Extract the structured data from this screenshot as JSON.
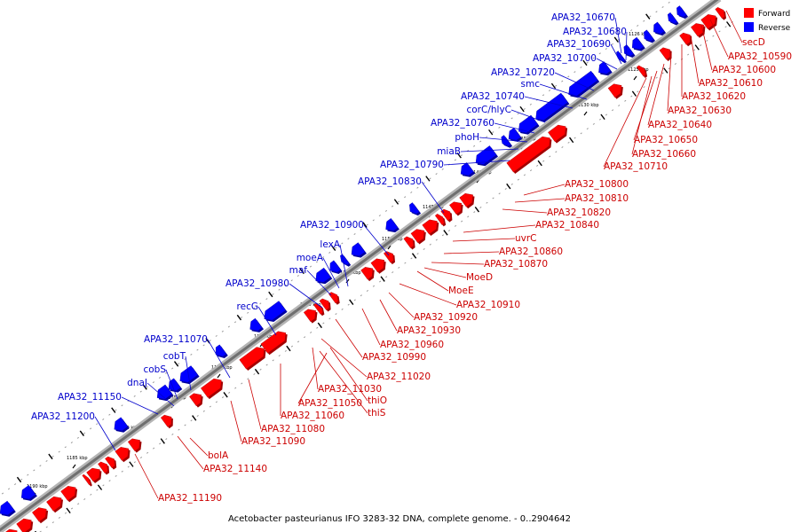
{
  "caption": "Acetobacter pasteurianus IFO 3283-32 DNA, complete genome. - 0..2904642",
  "legend": {
    "items": [
      {
        "label": "Forward",
        "color": "#ff0000"
      },
      {
        "label": "Reverse",
        "color": "#0000ff"
      }
    ]
  },
  "colors": {
    "forward": "#ff0000",
    "forward_label": "#cc0000",
    "reverse": "#0000ff",
    "reverse_label": "#0000cc",
    "backbone": "#888888"
  },
  "scale_labels": [
    "1125 kbp",
    "1126 kbp",
    "1130 kbp",
    "1135 kbp",
    "1140 kbp",
    "1145 kbp",
    "1150 kbp",
    "1155 kbp",
    "1160 kbp",
    "1165 kbp",
    "1170 kbp",
    "1175 kbp",
    "1180 kbp",
    "1185 kbp",
    "1190 kbp"
  ],
  "reverse_labels": [
    "APA32_10670",
    "APA32_10680",
    "APA32_10690",
    "APA32_10700",
    "APA32_10720",
    "smc",
    "APA32_10740",
    "corC/hlyC",
    "APA32_10760",
    "phoH",
    "miaB",
    "APA32_10790",
    "APA32_10830",
    "APA32_10900",
    "lexA",
    "moeA",
    "maf",
    "APA32_10980",
    "recG",
    "APA32_11070",
    "cobT",
    "cobS",
    "dnaJ",
    "APA32_11150",
    "APA32_11200"
  ],
  "forward_labels": [
    "secD",
    "APA32_10590",
    "APA32_10600",
    "APA32_10610",
    "APA32_10620",
    "APA32_10630",
    "APA32_10640",
    "APA32_10650",
    "APA32_10660",
    "APA32_10710",
    "APA32_10800",
    "APA32_10810",
    "APA32_10820",
    "APA32_10840",
    "uvrC",
    "APA32_10860",
    "APA32_10870",
    "MoeD",
    "MoeE",
    "APA32_10910",
    "APA32_10920",
    "APA32_10930",
    "APA32_10960",
    "APA32_10990",
    "APA32_11020",
    "APA32_11030",
    "APA32_11050",
    "thiO",
    "thiS",
    "APA32_11060",
    "APA32_11080",
    "APA32_11090",
    "bolA",
    "APA32_11140",
    "APA32_11190"
  ]
}
